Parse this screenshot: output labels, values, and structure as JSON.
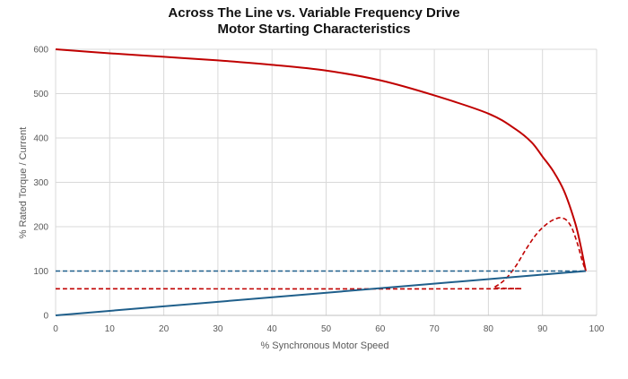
{
  "chart_data": {
    "type": "line",
    "title_line_1": "Across The Line vs. Variable Frequency Drive",
    "title_line_2": "Motor Starting Characteristics",
    "xlabel": "% Synchronous Motor Speed",
    "ylabel": "% Rated Torque / Current",
    "xlim": [
      0,
      100
    ],
    "ylim": [
      0,
      600
    ],
    "x_ticks": [
      0,
      10,
      20,
      30,
      40,
      50,
      60,
      70,
      80,
      90,
      100
    ],
    "y_ticks": [
      0,
      100,
      200,
      300,
      400,
      500,
      600
    ],
    "grid": true,
    "legend": "none",
    "series": [
      {
        "color": "#c00000",
        "style": "solid",
        "points": [
          [
            0,
            600
          ],
          [
            10,
            591
          ],
          [
            20,
            583
          ],
          [
            30,
            575
          ],
          [
            40,
            565
          ],
          [
            50,
            552
          ],
          [
            60,
            530
          ],
          [
            70,
            496
          ],
          [
            80,
            455
          ],
          [
            85,
            420
          ],
          [
            88,
            390
          ],
          [
            90,
            358
          ],
          [
            92,
            325
          ],
          [
            94,
            280
          ],
          [
            96,
            210
          ],
          [
            97,
            160
          ],
          [
            98,
            100
          ]
        ]
      },
      {
        "color": "#c00000",
        "style": "dashed",
        "points": [
          [
            0,
            60
          ],
          [
            80,
            60
          ],
          [
            81,
            63
          ],
          [
            83,
            80
          ],
          [
            85,
            110
          ],
          [
            87,
            150
          ],
          [
            89,
            185
          ],
          [
            91,
            208
          ],
          [
            92.5,
            218
          ],
          [
            93.5,
            220
          ],
          [
            94.5,
            214
          ],
          [
            95.5,
            195
          ],
          [
            96.5,
            160
          ],
          [
            97.3,
            125
          ],
          [
            98,
            100
          ]
        ]
      },
      {
        "color": "#1f5f8b",
        "style": "solid",
        "points": [
          [
            0,
            0
          ],
          [
            98,
            100
          ]
        ]
      },
      {
        "color": "#1f5f8b",
        "style": "dashed",
        "points": [
          [
            0,
            100
          ],
          [
            98,
            100
          ]
        ]
      }
    ]
  }
}
